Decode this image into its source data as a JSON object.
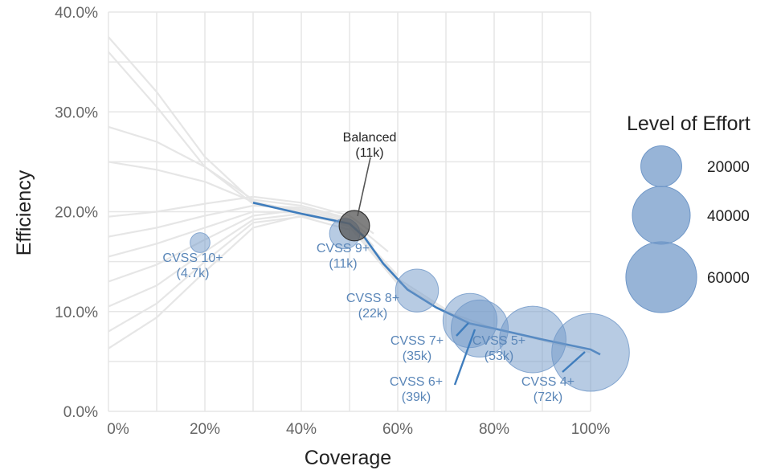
{
  "chart_data": {
    "type": "scatter",
    "title": "",
    "xlabel": "Coverage",
    "ylabel": "Efficiency",
    "xlim": [
      0,
      100
    ],
    "ylim": [
      0,
      40
    ],
    "grid": true,
    "x_ticks": [
      "0%",
      "20%",
      "40%",
      "60%",
      "80%",
      "100%"
    ],
    "y_ticks": [
      "0.0%",
      "10.0%",
      "20.0%",
      "30.0%",
      "40.0%"
    ],
    "size_legend": {
      "title": "Level of Effort",
      "placement": "right",
      "entries": [
        {
          "label": "20000",
          "value": 20000
        },
        {
          "label": "40000",
          "value": 40000
        },
        {
          "label": "60000",
          "value": 60000
        }
      ]
    },
    "colors": {
      "point": "#6f97c8",
      "frontier": "#3f7dbd",
      "highlight": "#444444",
      "background_lines": "#e6e6e6",
      "grid": "#e6e6e6"
    },
    "points": [
      {
        "name": "CVSS 10+",
        "effort_label": "(4.7k)",
        "x": 19,
        "y": 16.9,
        "effort": 4700
      },
      {
        "name": "CVSS 9+",
        "effort_label": "(11k)",
        "x": 49,
        "y": 17.8,
        "effort": 11000
      },
      {
        "name": "CVSS 8+",
        "effort_label": "(22k)",
        "x": 64,
        "y": 12.1,
        "effort": 22000
      },
      {
        "name": "CVSS 7+",
        "effort_label": "(35k)",
        "x": 75,
        "y": 9.1,
        "effort": 35000
      },
      {
        "name": "CVSS 6+",
        "effort_label": "(39k)",
        "x": 77,
        "y": 8.3,
        "effort": 39000
      },
      {
        "name": "CVSS 5+",
        "effort_label": "(53k)",
        "x": 88,
        "y": 7.2,
        "effort": 53000
      },
      {
        "name": "CVSS 4+",
        "effort_label": "(72k)",
        "x": 100,
        "y": 5.9,
        "effort": 72000
      }
    ],
    "highlight": {
      "name": "Balanced",
      "effort_label": "(11k)",
      "x": 51,
      "y": 18.6,
      "effort": 11000
    },
    "frontier_line": {
      "x": [
        30,
        40,
        50,
        53,
        57,
        62,
        68,
        75,
        80,
        90,
        100,
        102
      ],
      "y": [
        20.9,
        19.8,
        18.8,
        17.5,
        14.8,
        12.2,
        10.4,
        8.8,
        8.3,
        7.2,
        6.2,
        5.7
      ]
    },
    "background_lines": [
      [
        [
          0,
          37.5
        ],
        [
          10,
          32.0
        ],
        [
          20,
          25.5
        ],
        [
          30,
          21.0
        ],
        [
          40,
          20.0
        ],
        [
          50,
          18.8
        ],
        [
          60,
          13.0
        ],
        [
          70,
          10.0
        ],
        [
          80,
          8.3
        ],
        [
          90,
          7.1
        ],
        [
          100,
          5.9
        ]
      ],
      [
        [
          0,
          36.0
        ],
        [
          10,
          30.5
        ],
        [
          20,
          24.5
        ],
        [
          30,
          20.8
        ],
        [
          40,
          20.2
        ],
        [
          50,
          19.0
        ],
        [
          60,
          13.3
        ],
        [
          70,
          10.2
        ]
      ],
      [
        [
          0,
          28.5
        ],
        [
          10,
          27.0
        ],
        [
          20,
          24.5
        ],
        [
          30,
          21.2
        ],
        [
          40,
          20.6
        ],
        [
          50,
          19.3
        ],
        [
          55,
          16.5
        ]
      ],
      [
        [
          0,
          25.0
        ],
        [
          10,
          24.2
        ],
        [
          20,
          23.0
        ],
        [
          30,
          21.0
        ],
        [
          40,
          20.0
        ],
        [
          50,
          18.5
        ],
        [
          60,
          12.8
        ]
      ],
      [
        [
          0,
          19.5
        ],
        [
          10,
          20.0
        ],
        [
          20,
          20.8
        ],
        [
          30,
          21.5
        ],
        [
          40,
          20.9
        ],
        [
          50,
          19.6
        ],
        [
          55,
          17.8
        ]
      ],
      [
        [
          0,
          17.5
        ],
        [
          10,
          18.4
        ],
        [
          20,
          19.6
        ],
        [
          30,
          20.6
        ],
        [
          40,
          20.4
        ],
        [
          50,
          19.2
        ],
        [
          58,
          16.0
        ]
      ],
      [
        [
          0,
          15.5
        ],
        [
          10,
          16.8
        ],
        [
          20,
          18.4
        ],
        [
          30,
          20.0
        ],
        [
          40,
          19.9
        ],
        [
          50,
          18.8
        ],
        [
          60,
          13.6
        ]
      ],
      [
        [
          0,
          13.0
        ],
        [
          10,
          14.7
        ],
        [
          20,
          17.2
        ],
        [
          30,
          19.6
        ],
        [
          40,
          20.2
        ],
        [
          50,
          19.0
        ],
        [
          56,
          15.5
        ]
      ],
      [
        [
          0,
          10.5
        ],
        [
          10,
          12.6
        ],
        [
          20,
          16.0
        ],
        [
          30,
          19.2
        ],
        [
          40,
          19.8
        ],
        [
          50,
          18.6
        ]
      ],
      [
        [
          0,
          8.0
        ],
        [
          10,
          10.8
        ],
        [
          20,
          15.0
        ],
        [
          30,
          18.9
        ],
        [
          40,
          19.5
        ],
        [
          50,
          18.2
        ]
      ],
      [
        [
          0,
          6.3
        ],
        [
          10,
          9.4
        ],
        [
          20,
          14.0
        ],
        [
          30,
          18.4
        ],
        [
          40,
          19.6
        ],
        [
          50,
          18.9
        ],
        [
          54,
          17.0
        ]
      ]
    ]
  }
}
